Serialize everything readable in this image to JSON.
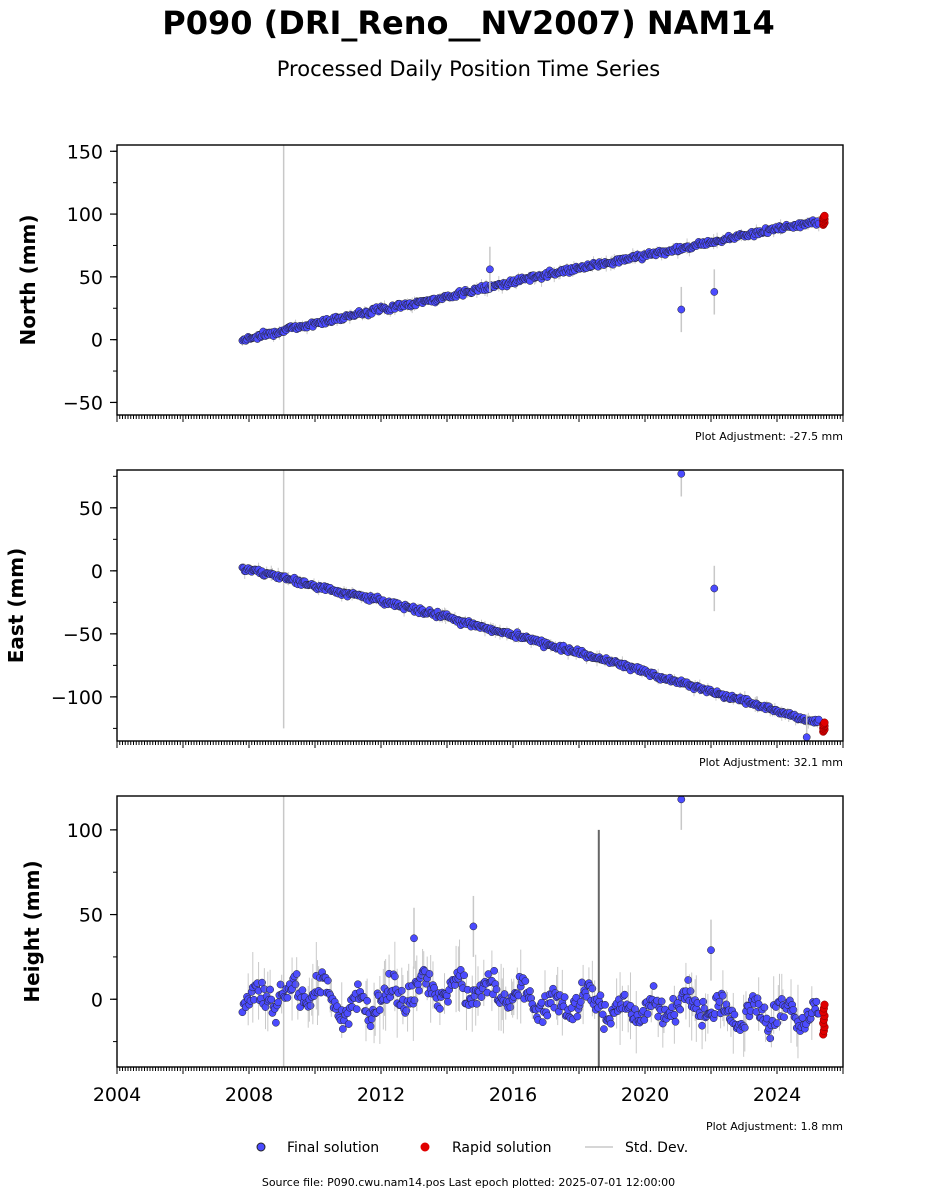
{
  "figure": {
    "title": "P090 (DRI_Reno__NV2007) NAM14",
    "subtitle": "Processed Daily Position Time Series",
    "footer": "Source file: P090.cwu.nam14.pos  Last epoch plotted: 2025-07-01 12:00:00"
  },
  "legend": {
    "final_label": "Final solution",
    "rapid_label": "Rapid solution",
    "std_label": "Std. Dev."
  },
  "colors": {
    "final": "#4b4bff",
    "rapid": "#e00000",
    "std": "#c8c8c8",
    "edge": "#222222"
  },
  "chart_data": [
    {
      "type": "scatter",
      "ylabel": "North (mm)",
      "adjustment": "Plot Adjustment: -27.5 mm",
      "xlim": [
        2004,
        2026
      ],
      "ylim": [
        -60,
        155
      ],
      "yticks": [
        -50,
        0,
        50,
        100,
        150
      ],
      "series": [
        {
          "name": "Final solution",
          "x": [
            2007.8,
            2009.0,
            2010.0,
            2011.0,
            2012.0,
            2013.0,
            2014.0,
            2015.0,
            2016.0,
            2017.0,
            2018.0,
            2019.0,
            2020.0,
            2021.0,
            2022.0,
            2023.0,
            2024.0,
            2025.0
          ],
          "y": [
            0,
            7,
            13,
            19,
            24,
            29,
            34,
            40,
            46,
            52,
            57,
            62,
            67,
            72,
            78,
            83,
            88,
            93
          ]
        },
        {
          "name": "Rapid solution",
          "x": [
            2025.4
          ],
          "y": [
            95
          ]
        }
      ],
      "outliers": [
        {
          "x": 2015.3,
          "y": 56
        },
        {
          "x": 2021.1,
          "y": 24
        },
        {
          "x": 2022.1,
          "y": 38
        }
      ]
    },
    {
      "type": "scatter",
      "ylabel": "East (mm)",
      "adjustment": "Plot Adjustment: 32.1 mm",
      "xlim": [
        2004,
        2026
      ],
      "ylim": [
        -135,
        80
      ],
      "yticks": [
        -100,
        -50,
        0,
        50
      ],
      "series": [
        {
          "name": "Final solution",
          "x": [
            2007.8,
            2009.0,
            2010.0,
            2011.0,
            2012.0,
            2013.0,
            2014.0,
            2015.0,
            2016.0,
            2017.0,
            2018.0,
            2019.0,
            2020.0,
            2021.0,
            2022.0,
            2023.0,
            2024.0,
            2025.0
          ],
          "y": [
            2,
            -5,
            -12,
            -18,
            -24,
            -30,
            -37,
            -44,
            -51,
            -58,
            -65,
            -72,
            -80,
            -88,
            -96,
            -103,
            -111,
            -119
          ]
        },
        {
          "name": "Rapid solution",
          "x": [
            2025.4
          ],
          "y": [
            -124
          ]
        }
      ],
      "outliers": [
        {
          "x": 2021.1,
          "y": 77
        },
        {
          "x": 2022.1,
          "y": -14
        },
        {
          "x": 2024.9,
          "y": -132
        }
      ]
    },
    {
      "type": "scatter",
      "ylabel": "Height (mm)",
      "adjustment": "Plot Adjustment: 1.8 mm",
      "xlim": [
        2004,
        2026
      ],
      "ylim": [
        -40,
        120
      ],
      "yticks": [
        0,
        50,
        100
      ],
      "xticks": [
        2004,
        2008,
        2012,
        2016,
        2020,
        2024
      ],
      "series": [
        {
          "name": "Final solution",
          "x": [
            2007.8,
            2009.0,
            2010.0,
            2011.0,
            2012.0,
            2013.0,
            2014.0,
            2015.0,
            2016.0,
            2017.0,
            2018.0,
            2019.0,
            2020.0,
            2021.0,
            2022.0,
            2023.0,
            2024.0,
            2025.0
          ],
          "y": [
            0,
            2,
            5,
            -5,
            0,
            5,
            8,
            6,
            2,
            -3,
            0,
            -5,
            -8,
            -2,
            -6,
            -10,
            -8,
            -10
          ]
        },
        {
          "name": "Rapid solution",
          "x": [
            2025.4
          ],
          "y": [
            -12
          ]
        }
      ],
      "outliers": [
        {
          "x": 2013.0,
          "y": 36
        },
        {
          "x": 2014.8,
          "y": 43
        },
        {
          "x": 2021.1,
          "y": 118
        },
        {
          "x": 2022.0,
          "y": 29
        }
      ]
    }
  ]
}
